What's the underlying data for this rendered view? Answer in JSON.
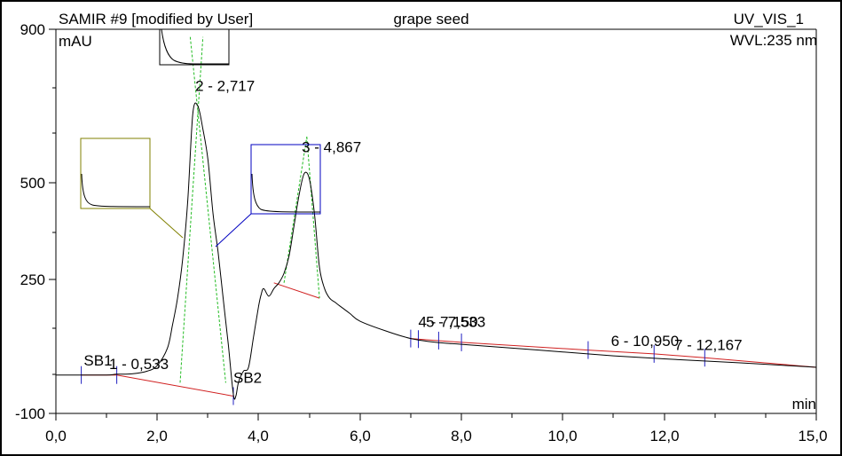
{
  "header": {
    "sample": "SAMIR #9 [modified by User]",
    "name": "grape seed",
    "channel": "UV_VIS_1",
    "wavelength": "WVL:235 nm"
  },
  "chart_data": {
    "type": "line",
    "xlabel": "min",
    "ylabel": "mAU",
    "xlim": [
      0,
      15
    ],
    "ylim": [
      -100,
      900
    ],
    "x_ticks": [
      "0,0",
      "2,0",
      "4,0",
      "6,0",
      "8,0",
      "10,0",
      "12,0",
      "15,0"
    ],
    "y_ticks": [
      "-100",
      "250",
      "500",
      "900"
    ],
    "grid": false,
    "series": [
      {
        "x": [
          0.0,
          0.5,
          1.0,
          1.2,
          1.5,
          1.8,
          2.0,
          2.2,
          2.3,
          2.4,
          2.5,
          2.6,
          2.7,
          2.8,
          2.9,
          3.0,
          3.1,
          3.2,
          3.3,
          3.4,
          3.5,
          3.55,
          3.6,
          3.7,
          3.8,
          3.9,
          4.0,
          4.05,
          4.1,
          4.2,
          4.3,
          4.4,
          4.5,
          4.6,
          4.7,
          4.8,
          4.9,
          5.0,
          5.1,
          5.2,
          5.3,
          5.4,
          5.5,
          5.6,
          5.8,
          6.0,
          6.5,
          7.0,
          7.5,
          8.0,
          9.0,
          10.0,
          11.0,
          12.0,
          13.0,
          14.0,
          15.0
        ],
        "y": [
          0,
          0,
          0,
          2,
          3,
          10,
          25,
          70,
          130,
          200,
          300,
          450,
          680,
          700,
          640,
          560,
          420,
          320,
          200,
          80,
          -50,
          -55,
          -20,
          10,
          20,
          100,
          180,
          210,
          225,
          205,
          225,
          240,
          265,
          310,
          390,
          470,
          525,
          510,
          420,
          280,
          225,
          200,
          190,
          180,
          160,
          140,
          115,
          95,
          85,
          80,
          70,
          60,
          50,
          42,
          35,
          28,
          20
        ]
      }
    ],
    "peak_labels": [
      {
        "text": "1 - 0,533",
        "x": 1.05,
        "y": 15
      },
      {
        "text": "SB1",
        "x": 0.55,
        "y": 25
      },
      {
        "text": "2 - 2,717",
        "x": 2.75,
        "y": 740
      },
      {
        "text": "SB2",
        "x": 3.5,
        "y": -20
      },
      {
        "text": "3 - 4,867",
        "x": 4.85,
        "y": 580
      },
      {
        "text": "4 - 7,150",
        "x": 7.15,
        "y": 125
      },
      {
        "text": "5 - 7,533",
        "x": 7.3,
        "y": 125
      },
      {
        "text": "6 - 10,950",
        "x": 10.95,
        "y": 75
      },
      {
        "text": "7 - 12,167",
        "x": 12.2,
        "y": 65
      }
    ],
    "baselines": [
      {
        "x": [
          0.5,
          1.2,
          3.5
        ],
        "y": [
          0,
          0,
          -55
        ]
      },
      {
        "x": [
          4.3,
          5.2
        ],
        "y": [
          240,
          200
        ]
      },
      {
        "x": [
          7.0,
          8.0,
          10.5,
          11.8,
          12.8,
          15.0
        ],
        "y": [
          95,
          85,
          65,
          55,
          45,
          20
        ]
      }
    ],
    "fit_lines": [
      {
        "x": [
          2.45,
          2.9
        ],
        "y": [
          -20,
          880
        ]
      },
      {
        "x": [
          2.65,
          3.35
        ],
        "y": [
          880,
          -20
        ]
      },
      {
        "x": [
          4.5,
          4.95
        ],
        "y": [
          240,
          620
        ]
      },
      {
        "x": [
          4.95,
          5.2
        ],
        "y": [
          620,
          200
        ]
      }
    ],
    "tick_marks": [
      0.5,
      1.2,
      3.5,
      7.0,
      7.15,
      7.55,
      8.0,
      10.5,
      11.8,
      12.8
    ]
  }
}
